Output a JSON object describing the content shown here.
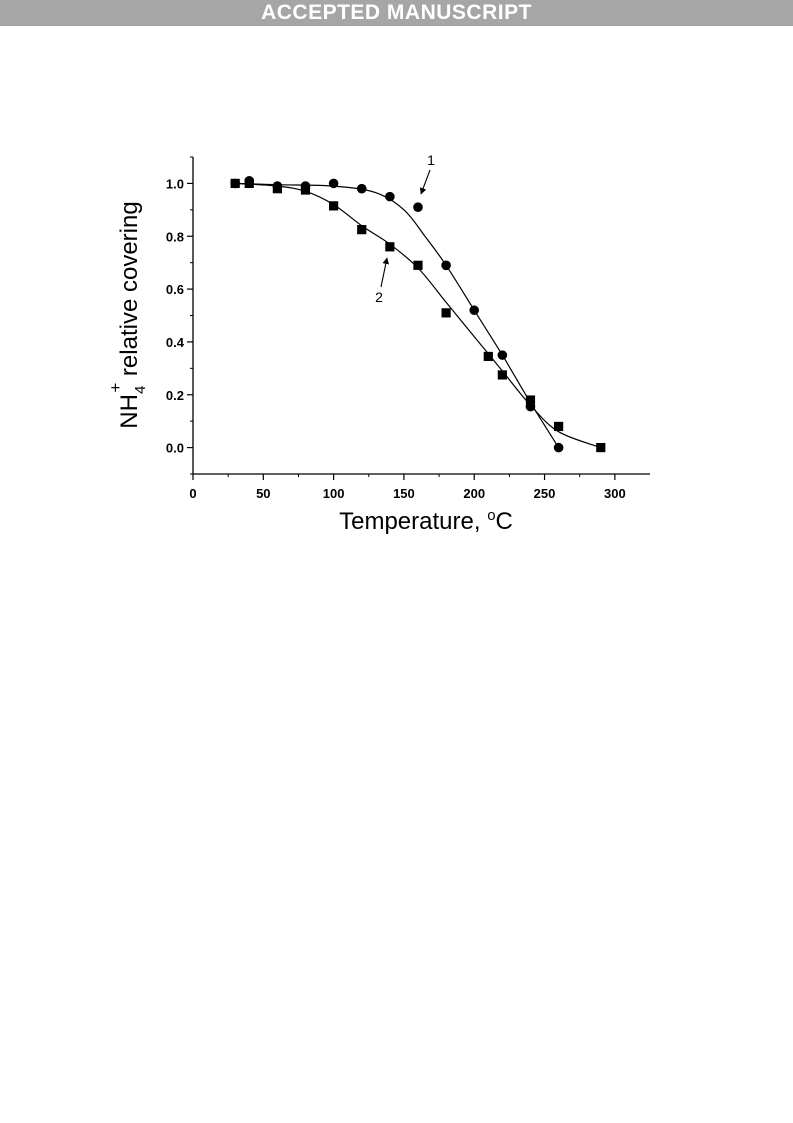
{
  "header": {
    "banner_text": "ACCEPTED MANUSCRIPT"
  },
  "colors": {
    "banner_bg": "#a6a6a6",
    "banner_text": "#ffffff",
    "ink": "#000000"
  },
  "chart_data": {
    "type": "scatter",
    "title": "",
    "xlabel": "Temperature, °C",
    "xlabel_main": "Temperature, ",
    "xlabel_degree": "o",
    "xlabel_unit": "C",
    "ylabel": "NH4+ relative covering",
    "ylabel_base": "NH",
    "ylabel_sub": "4",
    "ylabel_sup": "+",
    "ylabel_rest": " relative covering",
    "xlim": [
      0,
      325
    ],
    "ylim": [
      -0.1,
      1.1
    ],
    "x_ticks": [
      0,
      50,
      100,
      150,
      200,
      250,
      300
    ],
    "x_tick_labels": [
      "0",
      "50",
      "100",
      "150",
      "200",
      "250",
      "300"
    ],
    "y_ticks": [
      0.0,
      0.2,
      0.4,
      0.6,
      0.8,
      1.0
    ],
    "y_tick_labels": [
      "0.0",
      "0.2",
      "0.4",
      "0.6",
      "0.8",
      "1.0"
    ],
    "grid": false,
    "series": [
      {
        "marker": "circle",
        "annotation": "1",
        "x": [
          30,
          40,
          60,
          80,
          100,
          120,
          140,
          160,
          180,
          200,
          220,
          240,
          260
        ],
        "y": [
          1.0,
          1.01,
          0.99,
          0.99,
          1.0,
          0.98,
          0.95,
          0.91,
          0.69,
          0.52,
          0.35,
          0.155,
          0.0
        ],
        "fit_x": [
          30,
          60,
          100,
          130,
          150,
          165,
          180,
          200,
          220,
          240,
          260
        ],
        "fit_y": [
          1.0,
          0.995,
          0.99,
          0.965,
          0.9,
          0.8,
          0.69,
          0.52,
          0.35,
          0.17,
          0.0
        ]
      },
      {
        "marker": "square",
        "annotation": "2",
        "x": [
          30,
          40,
          60,
          80,
          100,
          120,
          140,
          160,
          180,
          210,
          220,
          240,
          260,
          290
        ],
        "y": [
          1.0,
          1.0,
          0.98,
          0.975,
          0.915,
          0.825,
          0.76,
          0.69,
          0.51,
          0.345,
          0.275,
          0.18,
          0.08,
          0.0
        ],
        "fit_x": [
          30,
          60,
          80,
          100,
          120,
          140,
          160,
          180,
          200,
          220,
          240,
          260,
          290
        ],
        "fit_y": [
          1.0,
          0.99,
          0.97,
          0.92,
          0.84,
          0.77,
          0.68,
          0.55,
          0.42,
          0.29,
          0.16,
          0.06,
          0.0
        ]
      }
    ]
  }
}
